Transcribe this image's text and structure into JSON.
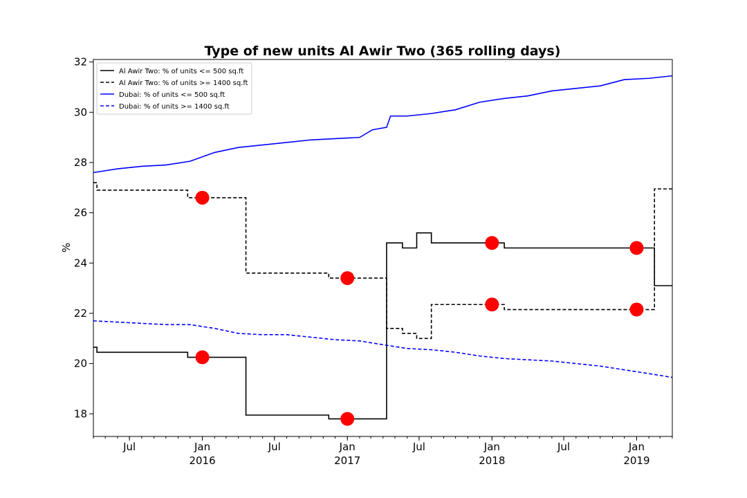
{
  "chart_data": {
    "type": "line",
    "title": "Type of new units Al Awir Two (365 rolling days)",
    "xlabel": "",
    "ylabel": "%",
    "xlim": [
      "2015-04-01",
      "2019-04-01"
    ],
    "ylim": [
      17.1,
      32.1
    ],
    "y_ticks": [
      18,
      20,
      22,
      24,
      26,
      28,
      30,
      32
    ],
    "x_ticks": [
      {
        "date": "2015-07-01",
        "label": "Jul",
        "year": ""
      },
      {
        "date": "2016-01-01",
        "label": "Jan",
        "year": "2016"
      },
      {
        "date": "2016-07-01",
        "label": "Jul",
        "year": ""
      },
      {
        "date": "2017-01-01",
        "label": "Jan",
        "year": "2017"
      },
      {
        "date": "2017-07-01",
        "label": "Jul",
        "year": ""
      },
      {
        "date": "2018-01-01",
        "label": "Jan",
        "year": "2018"
      },
      {
        "date": "2018-07-01",
        "label": "Jul",
        "year": ""
      },
      {
        "date": "2019-01-01",
        "label": "Jan",
        "year": "2019"
      }
    ],
    "grid": false,
    "legend_position": "top-left",
    "series": [
      {
        "name": "Al Awir Two: % of units <= 500 sq.ft",
        "color": "#000000",
        "style": "solid",
        "step": true,
        "points": [
          [
            "2015-04-01",
            20.65
          ],
          [
            "2015-04-10",
            20.45
          ],
          [
            "2015-11-25",
            20.25
          ],
          [
            "2016-04-20",
            17.95
          ],
          [
            "2016-11-15",
            17.8
          ],
          [
            "2017-04-10",
            24.8
          ],
          [
            "2017-05-20",
            24.6
          ],
          [
            "2017-06-25",
            25.2
          ],
          [
            "2017-08-01",
            24.8
          ],
          [
            "2018-02-01",
            24.6
          ],
          [
            "2019-02-15",
            23.1
          ],
          [
            "2019-04-01",
            23.1
          ]
        ]
      },
      {
        "name": "Al Awir Two: % of units >= 1400 sq.ft",
        "color": "#000000",
        "style": "dashed",
        "step": true,
        "points": [
          [
            "2015-04-01",
            27.2
          ],
          [
            "2015-04-10",
            26.9
          ],
          [
            "2015-11-25",
            26.6
          ],
          [
            "2016-04-20",
            23.6
          ],
          [
            "2016-11-15",
            23.4
          ],
          [
            "2017-04-10",
            21.4
          ],
          [
            "2017-05-20",
            21.2
          ],
          [
            "2017-06-25",
            21.0
          ],
          [
            "2017-08-01",
            22.35
          ],
          [
            "2018-02-01",
            22.15
          ],
          [
            "2019-02-15",
            26.95
          ],
          [
            "2019-04-01",
            26.95
          ]
        ]
      },
      {
        "name": "Dubai: % of units <= 500 sq.ft",
        "color": "#0000ff",
        "style": "solid",
        "step": false,
        "points": [
          [
            "2015-04-01",
            27.6
          ],
          [
            "2015-06-01",
            27.75
          ],
          [
            "2015-08-01",
            27.85
          ],
          [
            "2015-10-01",
            27.9
          ],
          [
            "2015-12-01",
            28.05
          ],
          [
            "2016-02-01",
            28.4
          ],
          [
            "2016-04-01",
            28.6
          ],
          [
            "2016-06-01",
            28.7
          ],
          [
            "2016-08-01",
            28.8
          ],
          [
            "2016-10-01",
            28.9
          ],
          [
            "2016-12-01",
            28.95
          ],
          [
            "2017-02-01",
            29.0
          ],
          [
            "2017-03-05",
            29.3
          ],
          [
            "2017-04-10",
            29.4
          ],
          [
            "2017-04-20",
            29.85
          ],
          [
            "2017-06-01",
            29.85
          ],
          [
            "2017-08-01",
            29.95
          ],
          [
            "2017-10-01",
            30.1
          ],
          [
            "2017-12-01",
            30.4
          ],
          [
            "2018-02-01",
            30.55
          ],
          [
            "2018-04-01",
            30.65
          ],
          [
            "2018-06-01",
            30.85
          ],
          [
            "2018-08-01",
            30.95
          ],
          [
            "2018-10-01",
            31.05
          ],
          [
            "2018-12-01",
            31.3
          ],
          [
            "2019-02-01",
            31.35
          ],
          [
            "2019-04-01",
            31.45
          ]
        ]
      },
      {
        "name": "Dubai: % of units >= 1400 sq.ft",
        "color": "#0000ff",
        "style": "dashed",
        "step": false,
        "points": [
          [
            "2015-04-01",
            21.7
          ],
          [
            "2015-06-01",
            21.65
          ],
          [
            "2015-08-01",
            21.6
          ],
          [
            "2015-10-01",
            21.55
          ],
          [
            "2015-12-01",
            21.55
          ],
          [
            "2016-02-01",
            21.4
          ],
          [
            "2016-04-01",
            21.2
          ],
          [
            "2016-06-01",
            21.15
          ],
          [
            "2016-08-01",
            21.15
          ],
          [
            "2016-10-01",
            21.05
          ],
          [
            "2016-12-01",
            20.95
          ],
          [
            "2017-02-01",
            20.9
          ],
          [
            "2017-04-01",
            20.75
          ],
          [
            "2017-06-01",
            20.6
          ],
          [
            "2017-08-01",
            20.55
          ],
          [
            "2017-10-01",
            20.45
          ],
          [
            "2017-12-01",
            20.3
          ],
          [
            "2018-02-01",
            20.2
          ],
          [
            "2018-04-01",
            20.15
          ],
          [
            "2018-06-01",
            20.1
          ],
          [
            "2018-08-01",
            20.0
          ],
          [
            "2018-10-01",
            19.9
          ],
          [
            "2018-12-01",
            19.75
          ],
          [
            "2019-02-01",
            19.6
          ],
          [
            "2019-04-01",
            19.45
          ]
        ]
      }
    ],
    "markers": {
      "color": "#ff0000",
      "points": [
        [
          "2016-01-01",
          20.25
        ],
        [
          "2016-01-01",
          26.6
        ],
        [
          "2017-01-01",
          17.8
        ],
        [
          "2017-01-01",
          23.4
        ],
        [
          "2018-01-01",
          24.8
        ],
        [
          "2018-01-01",
          22.35
        ],
        [
          "2019-01-01",
          24.6
        ],
        [
          "2019-01-01",
          22.15
        ]
      ]
    }
  }
}
